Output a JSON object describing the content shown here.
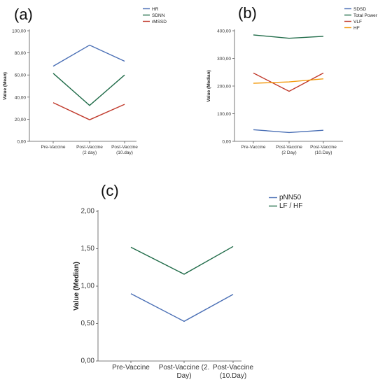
{
  "chart_data": [
    {
      "type": "line",
      "panel_label": "(a)",
      "categories": [
        "Pre-Vaccine",
        "Post-Vaccine\n(2 day)",
        "Post-Vaccine\n(10.day)"
      ],
      "ylabel": "Value (Mean)",
      "ylim": [
        0,
        100
      ],
      "yticks": [
        "0,00",
        "20,00",
        "40,00",
        "60,00",
        "80,00",
        "100,00"
      ],
      "legend_position": "top-right",
      "series": [
        {
          "name": "HR",
          "color": "#4a6fb5",
          "values": [
            68,
            87,
            72.5
          ]
        },
        {
          "name": "SDNN",
          "color": "#1f6b48",
          "values": [
            61.5,
            32.5,
            60
          ]
        },
        {
          "name": "rMSSD",
          "color": "#c0392b",
          "values": [
            35,
            19.5,
            33.5
          ]
        }
      ]
    },
    {
      "type": "line",
      "panel_label": "(b)",
      "categories": [
        "Pre-Vaccine",
        "Post-Vaccine\n(2 Day)",
        "Post-Vaccine\n(10.Day)"
      ],
      "ylabel": "Value (Median)",
      "ylim": [
        0,
        400
      ],
      "yticks": [
        "0,00",
        "100,00",
        "200,00",
        "300,00",
        "400,00"
      ],
      "legend_position": "top-right",
      "series": [
        {
          "name": "SDSD",
          "color": "#4a6fb5",
          "values": [
            42,
            32,
            40
          ]
        },
        {
          "name": "Total Power",
          "color": "#1f6b48",
          "values": [
            385,
            373,
            380
          ]
        },
        {
          "name": "VLF",
          "color": "#c0392b",
          "values": [
            247,
            181,
            247
          ]
        },
        {
          "name": "HF",
          "color": "#f39c12",
          "values": [
            210,
            215,
            226
          ]
        }
      ]
    },
    {
      "type": "line",
      "panel_label": "(c)",
      "categories": [
        "Pre-Vaccine",
        "Post-Vaccine (2.\nDay)",
        "Post-Vaccine\n(10.Day)"
      ],
      "ylabel": "Value (Median)",
      "ylim": [
        0,
        2.0
      ],
      "yticks": [
        "0,00",
        "0,50",
        "1,00",
        "1,50",
        "2,00"
      ],
      "legend_position": "top-right",
      "series": [
        {
          "name": "pNN50",
          "color": "#4a6fb5",
          "values": [
            0.9,
            0.53,
            0.89
          ]
        },
        {
          "name": "LF / HF",
          "color": "#1f6b48",
          "values": [
            1.52,
            1.16,
            1.53
          ]
        }
      ]
    }
  ]
}
